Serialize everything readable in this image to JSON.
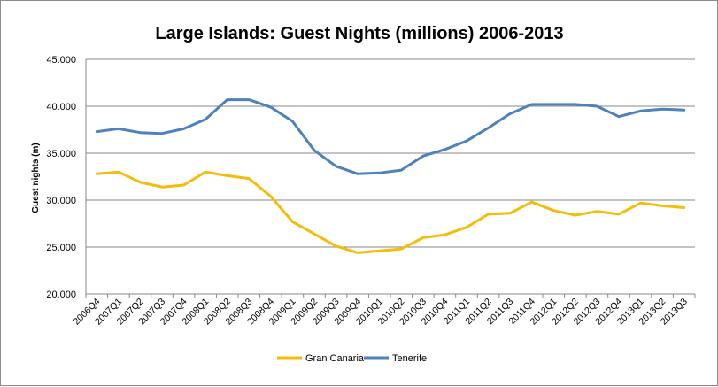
{
  "chart_data": {
    "type": "line",
    "title": "Large Islands: Guest Nights (millions) 2006-2013",
    "ylabel": "Guest nights (m)",
    "xlabel": "",
    "ylim": [
      20,
      45
    ],
    "ytick_labels": [
      "20.000",
      "25.000",
      "30.000",
      "35.000",
      "40.000",
      "45.000"
    ],
    "ytick_values": [
      20,
      25,
      30,
      35,
      40,
      45
    ],
    "grid": true,
    "legend_position": "bottom",
    "categories": [
      "2006Q4",
      "2007Q1",
      "2007Q2",
      "2007Q3",
      "2007Q4",
      "2008Q1",
      "2008Q2",
      "2008Q3",
      "2008Q4",
      "2009Q1",
      "2009Q2",
      "2009Q3",
      "2009Q4",
      "2010Q1",
      "2010Q2",
      "2010Q3",
      "2010Q4",
      "2011Q1",
      "2011Q2",
      "2011Q3",
      "2011Q4",
      "2012Q1",
      "2012Q2",
      "2012Q3",
      "2012Q4",
      "2013Q1",
      "2013Q2",
      "2013Q3"
    ],
    "series": [
      {
        "name": "Gran Canaria",
        "color": "#F5BC0A",
        "values": [
          32.8,
          33.0,
          31.9,
          31.4,
          31.6,
          33.0,
          32.6,
          32.3,
          30.4,
          27.7,
          26.4,
          25.1,
          24.4,
          24.6,
          24.8,
          26.0,
          26.3,
          27.1,
          28.5,
          28.6,
          29.8,
          28.9,
          28.4,
          28.8,
          28.5,
          29.7,
          29.4,
          29.2
        ]
      },
      {
        "name": "Tenerife",
        "color": "#4F81BD",
        "values": [
          37.3,
          37.6,
          37.2,
          37.1,
          37.6,
          38.6,
          40.7,
          40.7,
          39.9,
          38.4,
          35.3,
          33.6,
          32.8,
          32.9,
          33.2,
          34.7,
          35.4,
          36.3,
          37.7,
          39.2,
          40.2,
          40.2,
          40.2,
          40.0,
          38.9,
          39.5,
          39.7,
          39.6
        ]
      }
    ]
  }
}
